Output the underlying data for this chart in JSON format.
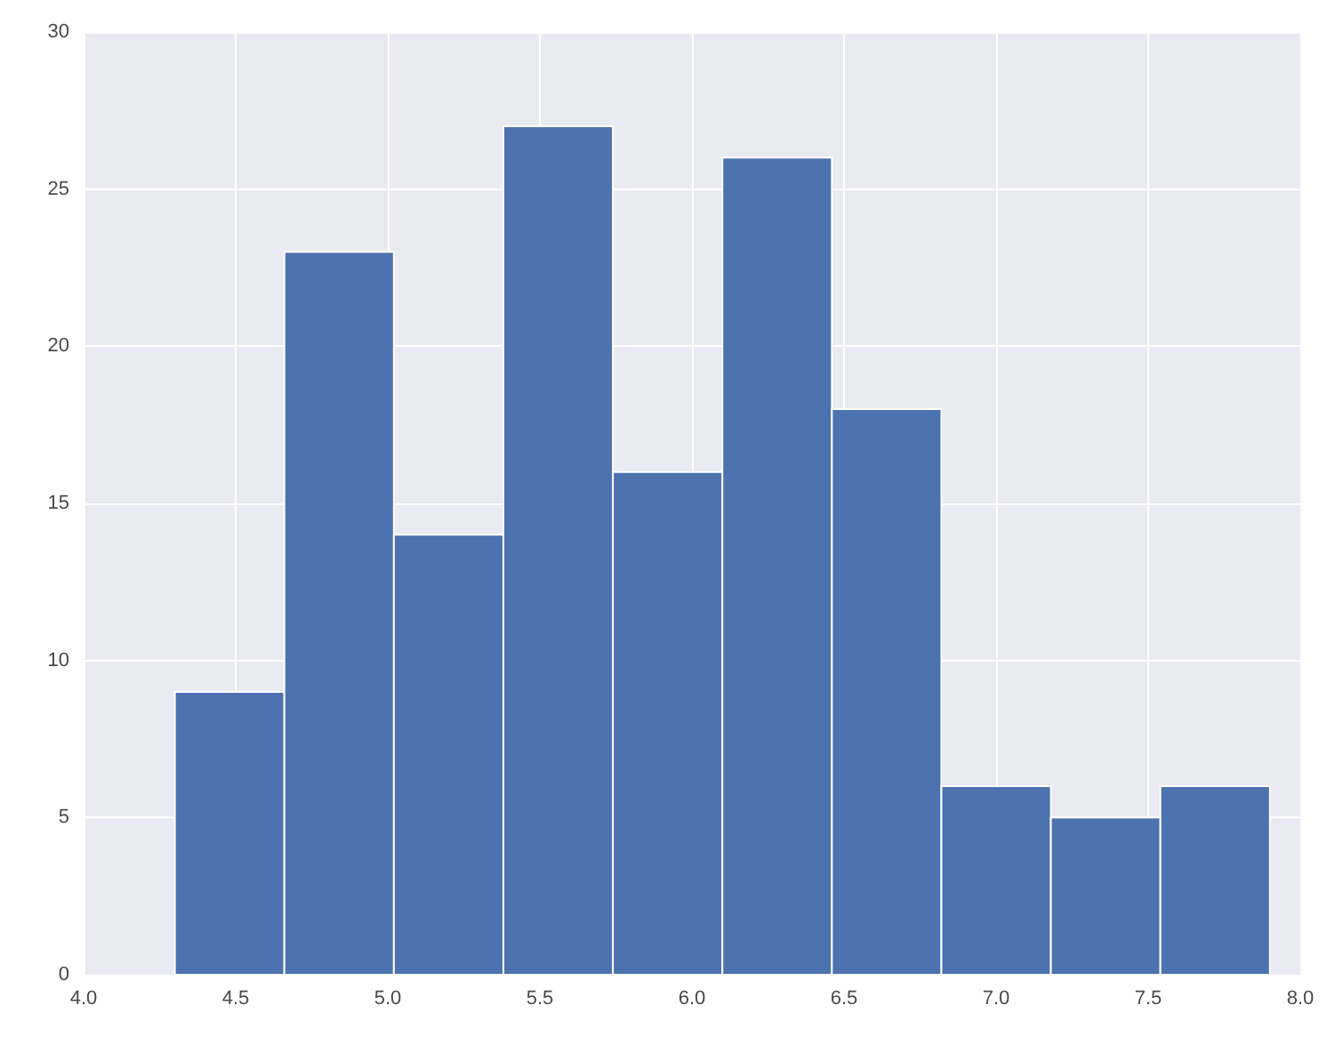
{
  "chart_data": {
    "type": "histogram",
    "bins": [
      4.3,
      4.66,
      5.02,
      5.38,
      5.74,
      6.1,
      6.46,
      6.82,
      7.18,
      7.54,
      7.9
    ],
    "values": [
      9,
      23,
      14,
      27,
      16,
      26,
      18,
      6,
      5,
      6
    ],
    "color": "#4c72b0",
    "xlim": [
      4.0,
      8.0
    ],
    "xticks": [
      {
        "value": 4,
        "label": "4.0"
      },
      4.5,
      {
        "value": 5,
        "label": "5.0"
      },
      5.5,
      {
        "value": 6,
        "label": "6.0"
      },
      6.5,
      {
        "value": 7,
        "label": "7.0"
      },
      7.5,
      {
        "value": 8,
        "label": "8.0"
      }
    ],
    "ylim": [
      0,
      30
    ],
    "yticks": [
      0,
      5,
      10,
      15,
      20,
      25,
      30
    ],
    "grid": true
  }
}
